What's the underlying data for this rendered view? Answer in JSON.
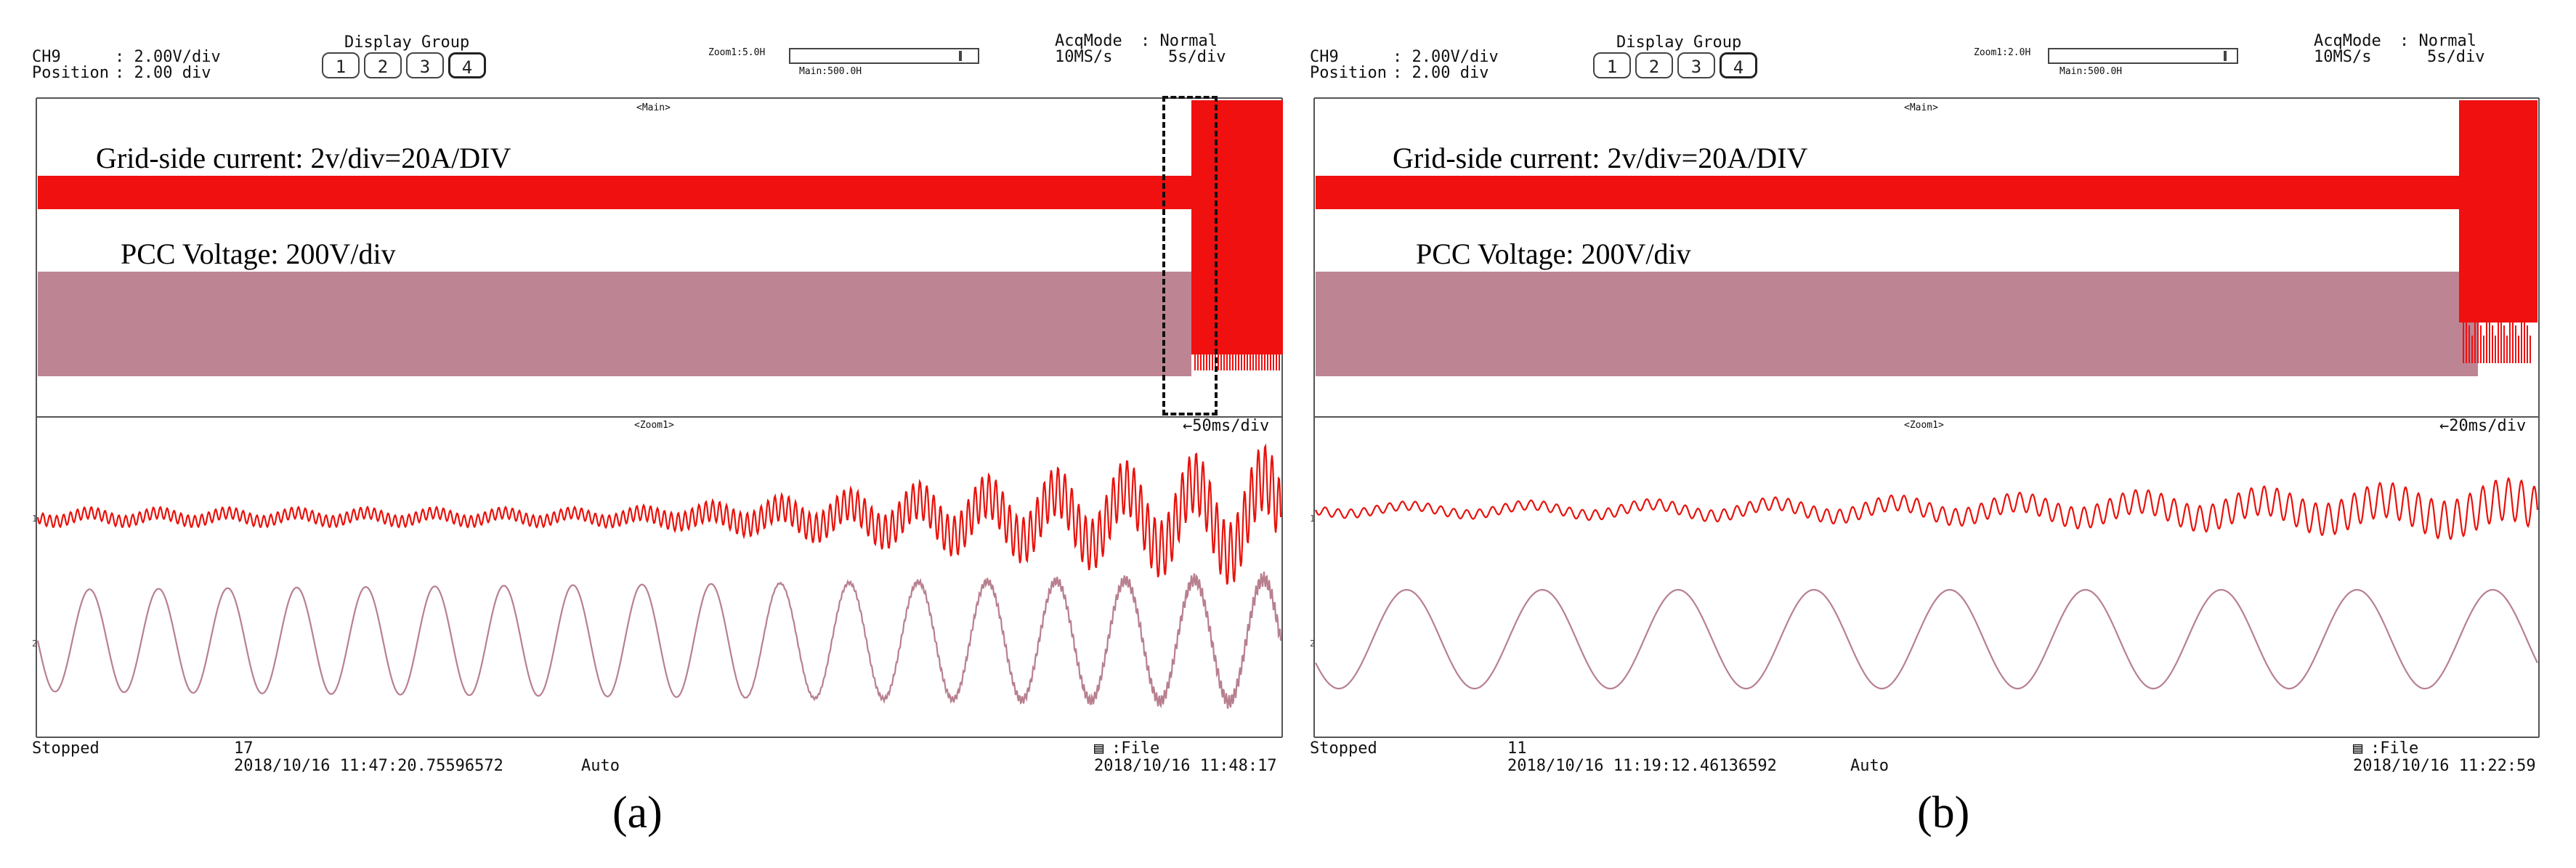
{
  "panels": [
    {
      "id": "a",
      "channel": "CH9",
      "volts_per_div": ": 2.00V/div",
      "position_label": "Position",
      "position_value": ": 2.00 div",
      "display_group_label": "Display Group",
      "display_group_buttons": [
        "1",
        "2",
        "3",
        "4"
      ],
      "display_group_active": "4",
      "zoom_label": "Zoom1:5.0H",
      "main_label": "Main:500.0H",
      "acq_mode_label": "AcqMode",
      "acq_mode_value": ": Normal",
      "sample_rate": "10MS/s",
      "time_div": "5s/div",
      "main_window_label": "<Main>",
      "zoom_window_label": "<Zoom1>",
      "zoom_time_div": "←50ms/div",
      "grid_current_label": "Grid-side current: 2v/div=20A/DIV",
      "pcc_voltage_label": "PCC Voltage: 200V/div",
      "status": "Stopped",
      "record_count": "17",
      "trigger_time": "2018/10/16 11:47:20.75596572",
      "trigger_mode": "Auto",
      "file_label": ":File",
      "end_time": "2018/10/16 11:48:17",
      "caption": "(a)"
    },
    {
      "id": "b",
      "channel": "CH9",
      "volts_per_div": ": 2.00V/div",
      "position_label": "Position",
      "position_value": ": 2.00 div",
      "display_group_label": "Display Group",
      "display_group_buttons": [
        "1",
        "2",
        "3",
        "4"
      ],
      "display_group_active": "4",
      "zoom_label": "Zoom1:2.0H",
      "main_label": "Main:500.0H",
      "acq_mode_label": "AcqMode",
      "acq_mode_value": ": Normal",
      "sample_rate": "10MS/s",
      "time_div": "5s/div",
      "main_window_label": "<Main>",
      "zoom_window_label": "<Zoom1>",
      "zoom_time_div": "←20ms/div",
      "grid_current_label": "Grid-side current: 2v/div=20A/DIV",
      "pcc_voltage_label": "PCC Voltage: 200V/div",
      "status": "Stopped",
      "record_count": "11",
      "trigger_time": "2018/10/16 11:19:12.46136592",
      "trigger_mode": "Auto",
      "file_label": ":File",
      "end_time": "2018/10/16 11:22:59",
      "caption": "(b)"
    }
  ],
  "colors": {
    "current_trace": "#e8120c",
    "voltage_trace": "#b8808f",
    "voltage_band": "#bd8494",
    "current_band": "#f01010",
    "screen_border": "#555555",
    "grid_line": "#c8c8c8"
  }
}
